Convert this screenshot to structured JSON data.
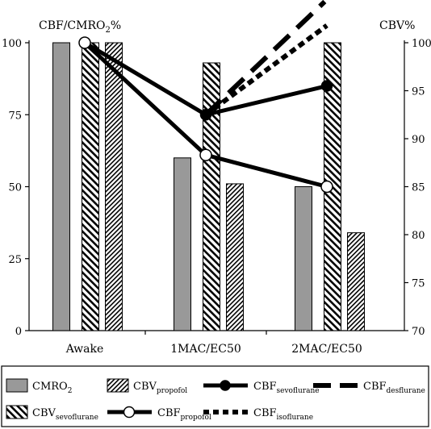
{
  "chart_data": {
    "type": "bar",
    "categories": [
      "Awake",
      "1MAC/EC50",
      "2MAC/EC50"
    ],
    "y_left": {
      "label_main": "CBF/CMRO",
      "label_sub": "2",
      "label_tail": "%",
      "ticks": [
        0,
        25,
        50,
        75,
        100
      ],
      "ylim": [
        0,
        100
      ]
    },
    "y_right": {
      "label": "CBV%",
      "ticks": [
        70,
        75,
        80,
        85,
        90,
        95,
        100
      ],
      "ylim": [
        70,
        100
      ]
    },
    "bar_series": [
      {
        "key": "cmro2",
        "name_main": "CMRO",
        "name_sub": "2",
        "axis": "left",
        "pattern": "solid-gray",
        "values": [
          100,
          60,
          50
        ]
      },
      {
        "key": "cbv_sevo",
        "name_main": "CBV",
        "name_sub": "sevoflurane",
        "axis": "left",
        "pattern": "diag-right",
        "values": [
          100,
          93,
          100
        ]
      },
      {
        "key": "cbv_prop",
        "name_main": "CBV",
        "name_sub": "propofol",
        "axis": "left",
        "pattern": "diag-left",
        "values": [
          100,
          51,
          34
        ]
      }
    ],
    "line_series": [
      {
        "key": "cbf_sevo",
        "name_main": "CBF",
        "name_sub": "sevoflurane",
        "style": "solid-filled-dot",
        "values": [
          100,
          75,
          85
        ]
      },
      {
        "key": "cbf_prop",
        "name_main": "CBF",
        "name_sub": "propofol",
        "style": "solid-open-dot",
        "values": [
          100,
          61,
          50
        ]
      },
      {
        "key": "cbf_des",
        "name_main": "CBF",
        "name_sub": "desflurane",
        "style": "dashed",
        "values": [
          null,
          75,
          115
        ]
      },
      {
        "key": "cbf_iso",
        "name_main": "CBF",
        "name_sub": "isoflurane",
        "style": "dotted",
        "values": [
          null,
          75,
          106
        ]
      }
    ],
    "legend_placement": "bottom",
    "grid": false
  },
  "colors": {
    "gray_fill": "#999999",
    "line": "#000000",
    "background": "#ffffff"
  }
}
